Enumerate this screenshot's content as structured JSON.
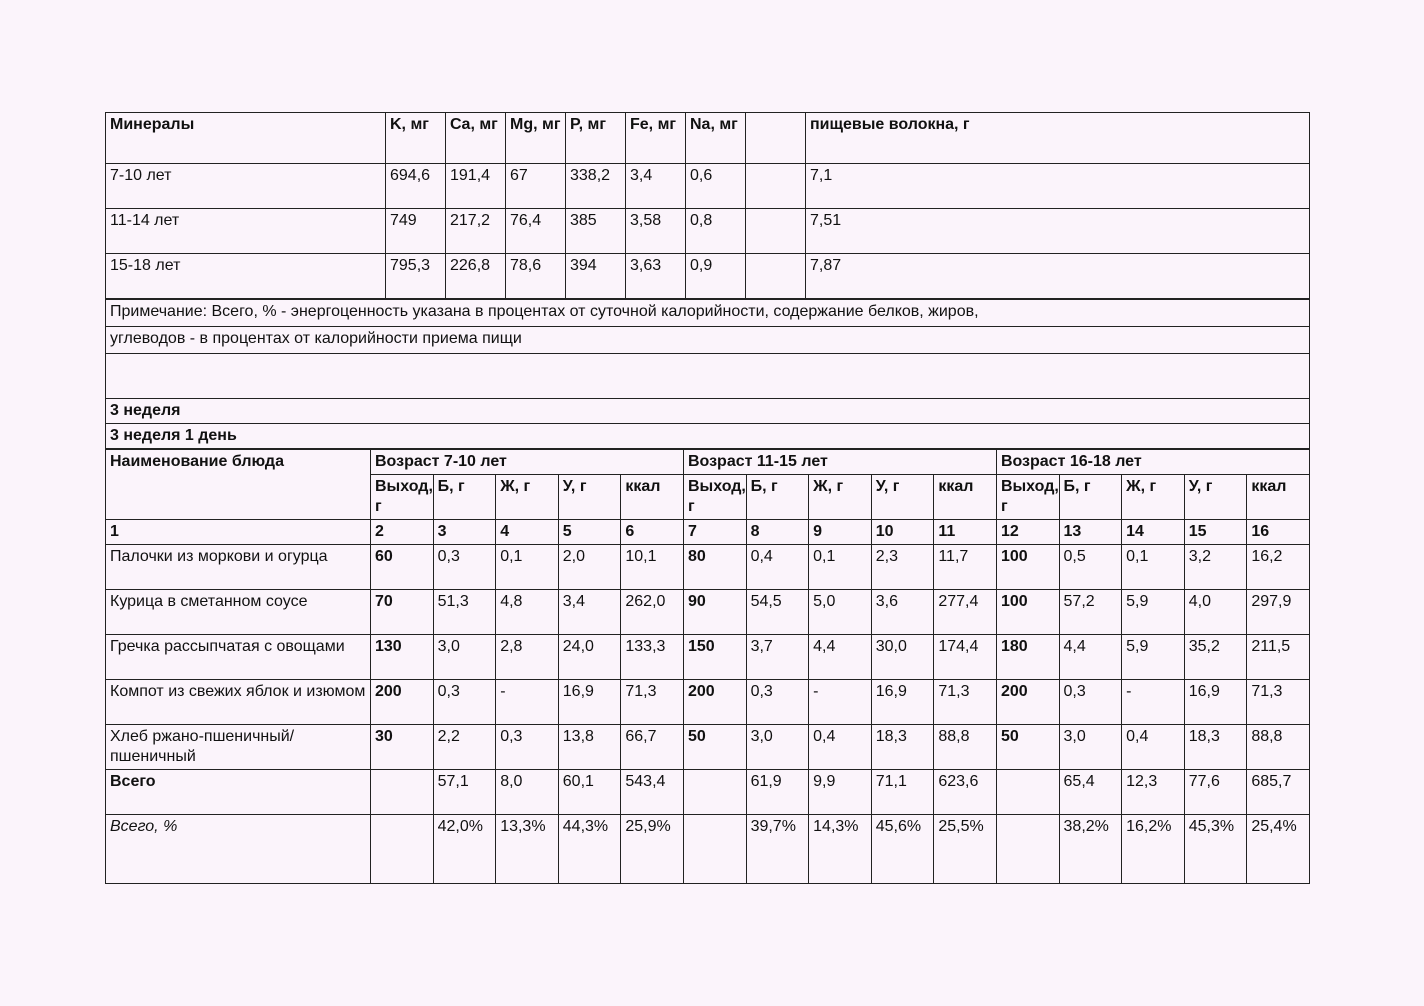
{
  "minerals": {
    "header": [
      "Минералы",
      "K, мг",
      "Ca, мг",
      "Mg, мг",
      "P, мг",
      "Fe, мг",
      "Na, мг",
      null,
      "пищевые волокна, г"
    ],
    "rows": [
      [
        "7-10 лет",
        "694,6",
        "191,4",
        "67",
        "338,2",
        "3,4",
        "0,6",
        null,
        "7,1"
      ],
      [
        "11-14 лет",
        "749",
        "217,2",
        "76,4",
        "385",
        "3,58",
        "0,8",
        null,
        "7,51"
      ],
      [
        "15-18 лет",
        "795,3",
        "226,8",
        "78,6",
        "394",
        "3,63",
        "0,9",
        null,
        "7,87"
      ]
    ]
  },
  "note": [
    "Примечание: Всего, % - энергоценность указана в процентах от суточной калорийности, содержание белков, жиров,",
    "углеводов - в процентах от калорийности приема пищи"
  ],
  "week": "3 неделя",
  "day": "3 неделя 1 день",
  "menu": {
    "name_header": "Наименование блюда",
    "age_groups": [
      "Возраст 7-10 лет",
      "Возраст 11-15 лет",
      "Возраст 16-18 лет"
    ],
    "column_headers": [
      "Выход, г",
      "Б, г",
      "Ж, г",
      "У, г",
      "ккал"
    ],
    "column_numbers": [
      "1",
      "2",
      "3",
      "4",
      "5",
      "6",
      "7",
      "8",
      "9",
      "10",
      "11",
      "12",
      "13",
      "14",
      "15",
      "16"
    ],
    "rows": [
      {
        "name": "Палочки из моркови и огурца",
        "values": [
          "60",
          "0,3",
          "0,1",
          "2,0",
          "10,1",
          "80",
          "0,4",
          "0,1",
          "2,3",
          "11,7",
          "100",
          "0,5",
          "0,1",
          "3,2",
          "16,2"
        ]
      },
      {
        "name": "Курица в сметанном соусе",
        "values": [
          "70",
          "51,3",
          "4,8",
          "3,4",
          "262,0",
          "90",
          "54,5",
          "5,0",
          "3,6",
          "277,4",
          "100",
          "57,2",
          "5,9",
          "4,0",
          "297,9"
        ]
      },
      {
        "name": "Гречка рассыпчатая с овощами",
        "values": [
          "130",
          "3,0",
          "2,8",
          "24,0",
          "133,3",
          "150",
          "3,7",
          "4,4",
          "30,0",
          "174,4",
          "180",
          "4,4",
          "5,9",
          "35,2",
          "211,5"
        ]
      },
      {
        "name": "Компот из свежих яблок и изюмом",
        "values": [
          "200",
          "0,3",
          "-",
          "16,9",
          "71,3",
          "200",
          "0,3",
          "-",
          "16,9",
          "71,3",
          "200",
          "0,3",
          "-",
          "16,9",
          "71,3"
        ]
      },
      {
        "name": "Хлеб ржано-пшеничный/пшеничный",
        "values": [
          "30",
          "2,2",
          "0,3",
          "13,8",
          "66,7",
          "50",
          "3,0",
          "0,4",
          "18,3",
          "88,8",
          "50",
          "3,0",
          "0,4",
          "18,3",
          "88,8"
        ]
      },
      {
        "name": "Всего",
        "values": [
          null,
          "57,1",
          "8,0",
          "60,1",
          "543,4",
          null,
          "61,9",
          "9,9",
          "71,1",
          "623,6",
          null,
          "65,4",
          "12,3",
          "77,6",
          "685,7"
        ]
      },
      {
        "name": "Всего, %",
        "values": [
          null,
          "42,0%",
          "13,3%",
          "44,3%",
          "25,9%",
          null,
          "39,7%",
          "14,3%",
          "45,6%",
          "25,5%",
          null,
          "38,2%",
          "16,2%",
          "45,3%",
          "25,4%"
        ]
      }
    ]
  }
}
